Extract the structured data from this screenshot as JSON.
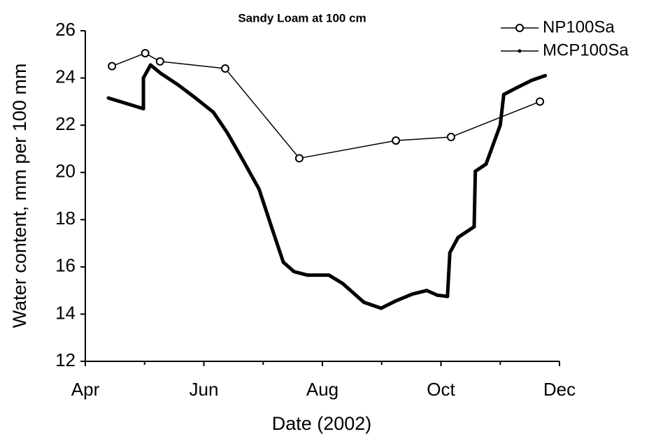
{
  "chart_data": {
    "type": "line",
    "title": "Sandy Loam at 100 cm",
    "xlabel": "Date (2002)",
    "ylabel": "Water content, mm per 100 mm",
    "xlim": [
      4,
      12
    ],
    "xticks": [
      {
        "value": 4,
        "label": "Apr"
      },
      {
        "value": 6,
        "label": "Jun"
      },
      {
        "value": 8,
        "label": "Aug"
      },
      {
        "value": 10,
        "label": "Oct"
      },
      {
        "value": 12,
        "label": "Dec"
      }
    ],
    "ylim": [
      12,
      26
    ],
    "yticks": [
      12,
      14,
      16,
      18,
      20,
      22,
      24,
      26
    ],
    "legend": "upper right",
    "series": [
      {
        "name": "NP100Sa",
        "color": "#000000",
        "marker": "open-circle",
        "x": [
          4.45,
          5.01,
          5.26,
          6.36,
          7.61,
          9.24,
          10.17,
          11.67
        ],
        "values": [
          24.5,
          25.05,
          24.7,
          24.4,
          20.6,
          21.35,
          21.5,
          23.0
        ]
      },
      {
        "name": "MCP100Sa",
        "color": "#000000",
        "marker": "dot",
        "x": [
          4.39,
          4.98,
          4.98,
          5.1,
          5.27,
          5.57,
          5.86,
          6.16,
          6.39,
          6.63,
          6.93,
          7.16,
          7.34,
          7.52,
          7.75,
          8.11,
          8.34,
          8.7,
          8.99,
          9.23,
          9.52,
          9.76,
          9.94,
          10.11,
          10.15,
          10.29,
          10.56,
          10.58,
          10.76,
          11.0,
          11.06,
          11.29,
          11.53,
          11.76
        ],
        "values": [
          23.15,
          22.7,
          24.0,
          24.55,
          24.2,
          23.7,
          23.15,
          22.55,
          21.7,
          20.65,
          19.3,
          17.55,
          16.2,
          15.8,
          15.65,
          15.65,
          15.3,
          14.5,
          14.25,
          14.55,
          14.85,
          15.0,
          14.8,
          14.75,
          16.6,
          17.25,
          17.7,
          20.05,
          20.35,
          22.0,
          23.3,
          23.6,
          23.9,
          24.1
        ]
      }
    ]
  }
}
